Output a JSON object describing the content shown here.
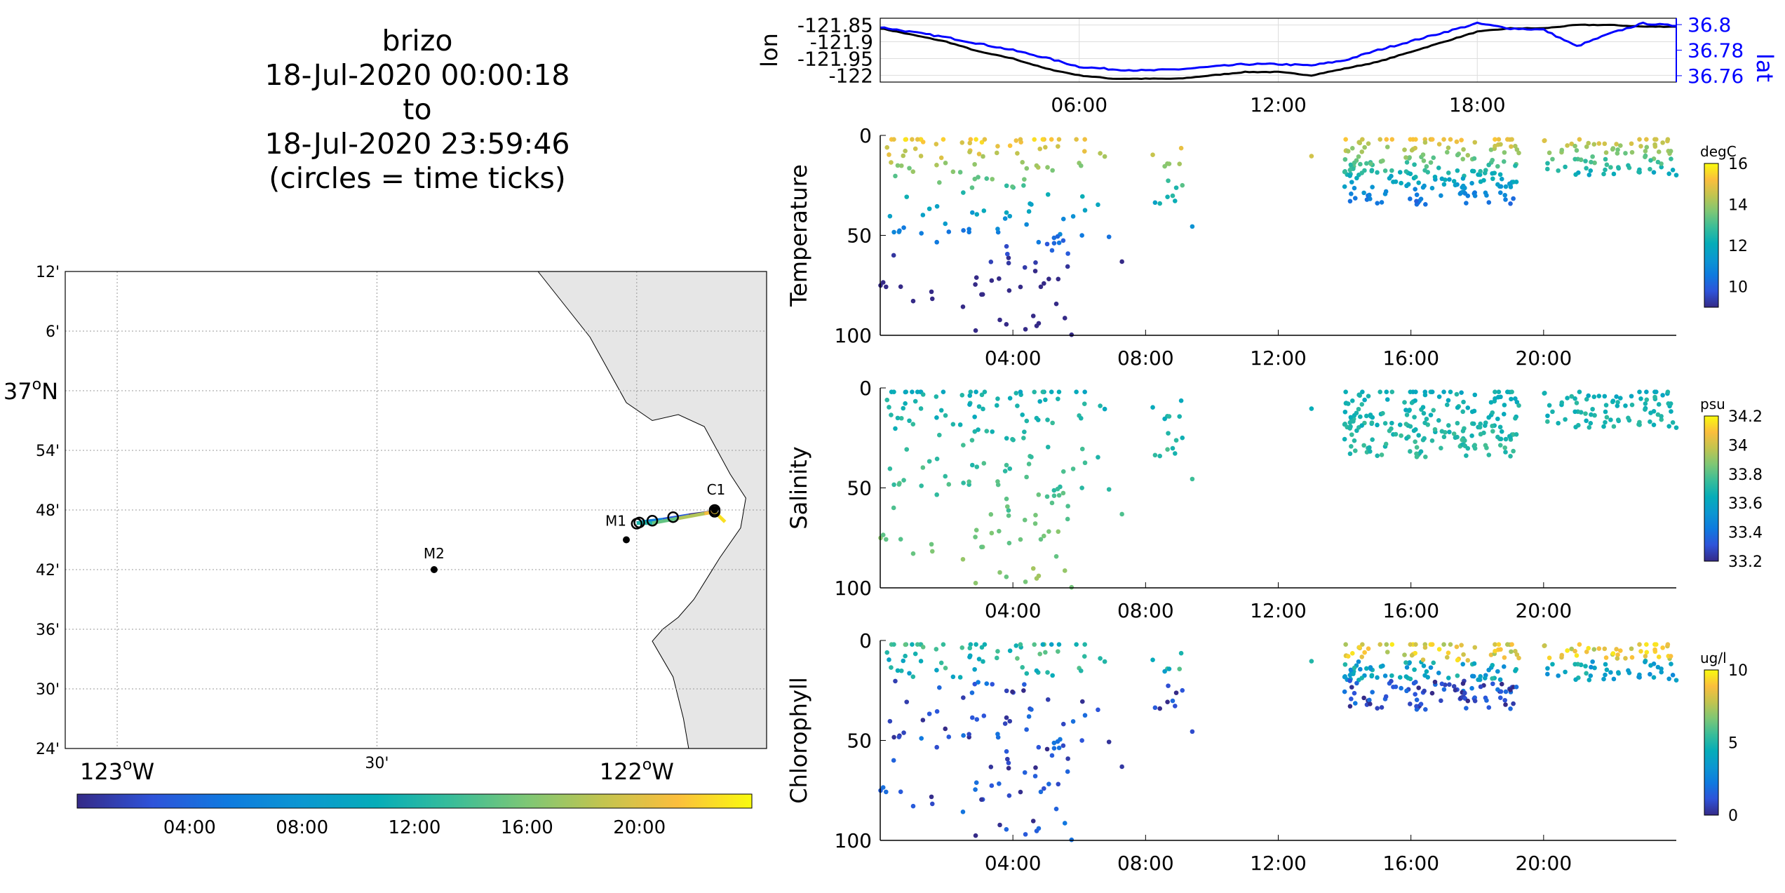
{
  "header": {
    "platform": "brizo",
    "start": "18-Jul-2020 00:00:18",
    "to": "to",
    "end": "18-Jul-2020 23:59:46",
    "note": "(circles = time ticks)"
  },
  "colors": {
    "lon_line": "#000000",
    "lat_line": "#0000ff",
    "land": "#e6e6e6",
    "grid": "#c8c8c8"
  },
  "map": {
    "lon_ticks": [
      {
        "lon": -123.0,
        "label": "123",
        "deg": true
      },
      {
        "lon": -122.5,
        "label": "30'",
        "deg": false
      },
      {
        "lon": -122.0,
        "label": "122",
        "deg": true
      }
    ],
    "lon_hemisphere": "W",
    "lat_ticks": [
      {
        "lat": 37.2,
        "label": "12'"
      },
      {
        "lat": 37.1,
        "label": "6'"
      },
      {
        "lat": 37.0,
        "label": "37",
        "deg": true
      },
      {
        "lat": 36.9,
        "label": "54'"
      },
      {
        "lat": 36.8,
        "label": "48'"
      },
      {
        "lat": 36.7,
        "label": "42'"
      },
      {
        "lat": 36.6,
        "label": "36'"
      },
      {
        "lat": 36.5,
        "label": "30'"
      },
      {
        "lat": 36.4,
        "label": "24'"
      }
    ],
    "lat_hemisphere": "N",
    "lon_range": [
      -123.1,
      -121.75
    ],
    "lat_range": [
      36.4,
      37.2
    ],
    "stations": [
      {
        "name": "M2",
        "lon": -122.39,
        "lat": 36.7
      },
      {
        "name": "M1",
        "lon": -122.02,
        "lat": 36.75
      },
      {
        "name": "C1",
        "lon": -121.85,
        "lat": 36.8
      }
    ],
    "track": [
      [
        -121.85,
        36.797
      ],
      [
        -121.9,
        36.791
      ],
      [
        -121.95,
        36.784
      ],
      [
        -121.98,
        36.781
      ],
      [
        -122.0,
        36.778
      ],
      [
        -121.97,
        36.778
      ],
      [
        -121.92,
        36.786
      ],
      [
        -121.87,
        36.794
      ],
      [
        -121.85,
        36.797
      ]
    ],
    "time_circles": [
      [
        -121.85,
        36.797
      ],
      [
        -121.93,
        36.788
      ],
      [
        -121.97,
        36.782
      ],
      [
        -122.0,
        36.777
      ],
      [
        -121.995,
        36.779
      ],
      [
        -121.85,
        36.8
      ]
    ],
    "colorbar_ticks": [
      "04:00",
      "08:00",
      "12:00",
      "16:00",
      "20:00"
    ]
  },
  "chart_data": [
    {
      "type": "line",
      "ylabel": "lon",
      "ylabel_right": "lat",
      "x_ticks": [
        "06:00",
        "12:00",
        "18:00"
      ],
      "y_ticks_left": [
        "-121.85",
        "-121.9",
        "-121.95",
        "-122"
      ],
      "ylim_left": [
        -122.02,
        -121.83
      ],
      "y_ticks_right": [
        "36.8",
        "36.78",
        "36.76"
      ],
      "ylim_right": [
        36.755,
        36.805
      ],
      "xlim_hours": [
        0,
        24
      ],
      "series": [
        {
          "name": "lon",
          "x": [
            0,
            1,
            2,
            3,
            4,
            5,
            6,
            7,
            8,
            9,
            10,
            11,
            12,
            13,
            14,
            15,
            16,
            17,
            18,
            19,
            20,
            21,
            22,
            23,
            24
          ],
          "values": [
            -121.86,
            -121.88,
            -121.9,
            -121.93,
            -121.95,
            -121.98,
            -122.0,
            -122.01,
            -122.01,
            -122.01,
            -122.0,
            -121.99,
            -121.99,
            -122.0,
            -121.98,
            -121.96,
            -121.93,
            -121.9,
            -121.87,
            -121.86,
            -121.86,
            -121.85,
            -121.85,
            -121.855,
            -121.855
          ]
        },
        {
          "name": "lat",
          "x": [
            0,
            1,
            2,
            3,
            4,
            5,
            6,
            7,
            8,
            9,
            10,
            11,
            12,
            13,
            14,
            15,
            16,
            17,
            18,
            19,
            20,
            21,
            22,
            23,
            24
          ],
          "values": [
            36.798,
            36.794,
            36.79,
            36.785,
            36.78,
            36.774,
            36.767,
            36.765,
            36.764,
            36.765,
            36.767,
            36.769,
            36.769,
            36.768,
            36.772,
            36.78,
            36.787,
            36.794,
            36.801,
            36.797,
            36.796,
            36.783,
            36.793,
            36.801,
            36.799
          ]
        }
      ]
    },
    {
      "type": "scatter",
      "ylabel": "Temperature",
      "unit": "degC",
      "clim": [
        9,
        16
      ],
      "cticks": [
        10,
        12,
        14,
        16
      ],
      "ylim": [
        100,
        0
      ],
      "y_ticks": [
        0,
        50,
        100
      ],
      "x_ticks": [
        "04:00",
        "08:00",
        "12:00",
        "16:00",
        "20:00"
      ],
      "xlim_hours": [
        0,
        24
      ]
    },
    {
      "type": "scatter",
      "ylabel": "Salinity",
      "unit": "psu",
      "clim": [
        33.2,
        34.2
      ],
      "cticks": [
        33.2,
        33.4,
        33.6,
        33.8,
        34,
        34.2
      ],
      "ylim": [
        100,
        0
      ],
      "y_ticks": [
        0,
        50,
        100
      ],
      "x_ticks": [
        "04:00",
        "08:00",
        "12:00",
        "16:00",
        "20:00"
      ],
      "xlim_hours": [
        0,
        24
      ]
    },
    {
      "type": "scatter",
      "ylabel": "Chlorophyll",
      "unit": "ug/l",
      "clim": [
        0,
        10
      ],
      "cticks": [
        0,
        5,
        10
      ],
      "ylim": [
        100,
        0
      ],
      "y_ticks": [
        0,
        50,
        100
      ],
      "x_ticks": [
        "04:00",
        "08:00",
        "12:00",
        "16:00",
        "20:00"
      ],
      "xlim_hours": [
        0,
        24
      ]
    }
  ]
}
